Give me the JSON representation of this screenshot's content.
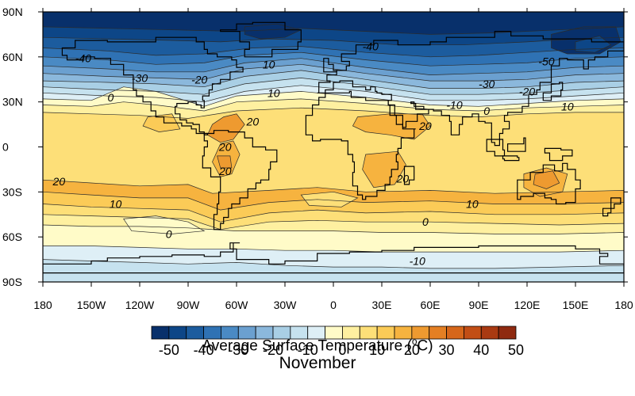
{
  "map": {
    "lat_labels": [
      "90N",
      "60N",
      "30N",
      "0",
      "30S",
      "60S",
      "90S"
    ],
    "lon_labels": [
      "180",
      "150W",
      "120W",
      "90W",
      "60W",
      "30W",
      "0",
      "30E",
      "60E",
      "90E",
      "120E",
      "150E",
      "180"
    ],
    "contour_labels": [
      {
        "text": "-40",
        "lon": -155,
        "lat": 59
      },
      {
        "text": "-30",
        "lon": -120,
        "lat": 46
      },
      {
        "text": "-20",
        "lon": -83,
        "lat": 45
      },
      {
        "text": "10",
        "lon": -40,
        "lat": 55
      },
      {
        "text": "10",
        "lon": -37,
        "lat": 36
      },
      {
        "text": "-40",
        "lon": 23,
        "lat": 67
      },
      {
        "text": "-30",
        "lon": 95,
        "lat": 42
      },
      {
        "text": "-50",
        "lon": 132,
        "lat": 57
      },
      {
        "text": "-20",
        "lon": 120,
        "lat": 37
      },
      {
        "text": "-10",
        "lon": 75,
        "lat": 28
      },
      {
        "text": "0",
        "lon": 95,
        "lat": 24
      },
      {
        "text": "10",
        "lon": 145,
        "lat": 27
      },
      {
        "text": "0",
        "lon": -138,
        "lat": 33
      },
      {
        "text": "20",
        "lon": -50,
        "lat": 17
      },
      {
        "text": "20",
        "lon": 57,
        "lat": 14
      },
      {
        "text": "20",
        "lon": -67,
        "lat": 0
      },
      {
        "text": "20",
        "lon": -67,
        "lat": -16
      },
      {
        "text": "20",
        "lon": 43,
        "lat": -21
      },
      {
        "text": "20",
        "lon": -170,
        "lat": -23
      },
      {
        "text": "10",
        "lon": -135,
        "lat": -38
      },
      {
        "text": "10",
        "lon": 86,
        "lat": -38
      },
      {
        "text": "0",
        "lon": -102,
        "lat": -58
      },
      {
        "text": "0",
        "lon": 57,
        "lat": -50
      },
      {
        "text": "-10",
        "lon": 52,
        "lat": -76
      }
    ]
  },
  "colorbar": {
    "colors": [
      "#08306b",
      "#0d4687",
      "#1c5c9e",
      "#2f72b4",
      "#4a8ac4",
      "#6ba0d0",
      "#8bb8dc",
      "#a9cfe5",
      "#c6e2ef",
      "#deeff6",
      "#fffbc8",
      "#fef0a0",
      "#fddf78",
      "#fbcb57",
      "#f6b33f",
      "#ee9a30",
      "#e47f23",
      "#d6661a",
      "#c24e15",
      "#a93a12",
      "#8f2a10"
    ],
    "labels": [
      "-50",
      "-40",
      "-30",
      "-20",
      "-10",
      "0",
      "10",
      "20",
      "30",
      "40",
      "50"
    ],
    "title": "Average Surface Temperature (",
    "title_sup": "o",
    "title_end": "C)"
  },
  "subtitle": "November"
}
